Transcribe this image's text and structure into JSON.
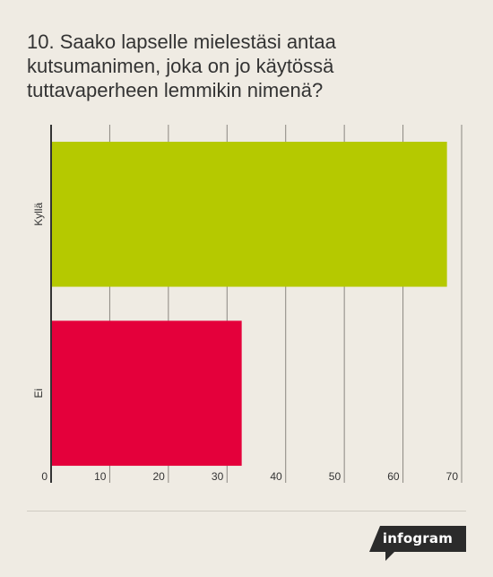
{
  "title": "10. Saako lapselle mielestäsi antaa kutsumanimen, joka on jo käytössä tuttavaperheen lemmikin nimenä?",
  "brand": "infogram",
  "chart_data": {
    "type": "bar",
    "orientation": "horizontal",
    "title": "10. Saako lapselle mielestäsi antaa kutsumanimen, joka on jo käytössä tuttavaperheen lemmikin nimenä?",
    "categories": [
      "Kyllä",
      "Ei"
    ],
    "values": [
      67.5,
      32.5
    ],
    "colors": [
      "#b5c900",
      "#e4003b"
    ],
    "xlim": [
      0,
      70
    ],
    "xticks": [
      0,
      10,
      20,
      30,
      40,
      50,
      60,
      70
    ],
    "grid": true,
    "legend": "none",
    "xlabel": "",
    "ylabel": ""
  }
}
